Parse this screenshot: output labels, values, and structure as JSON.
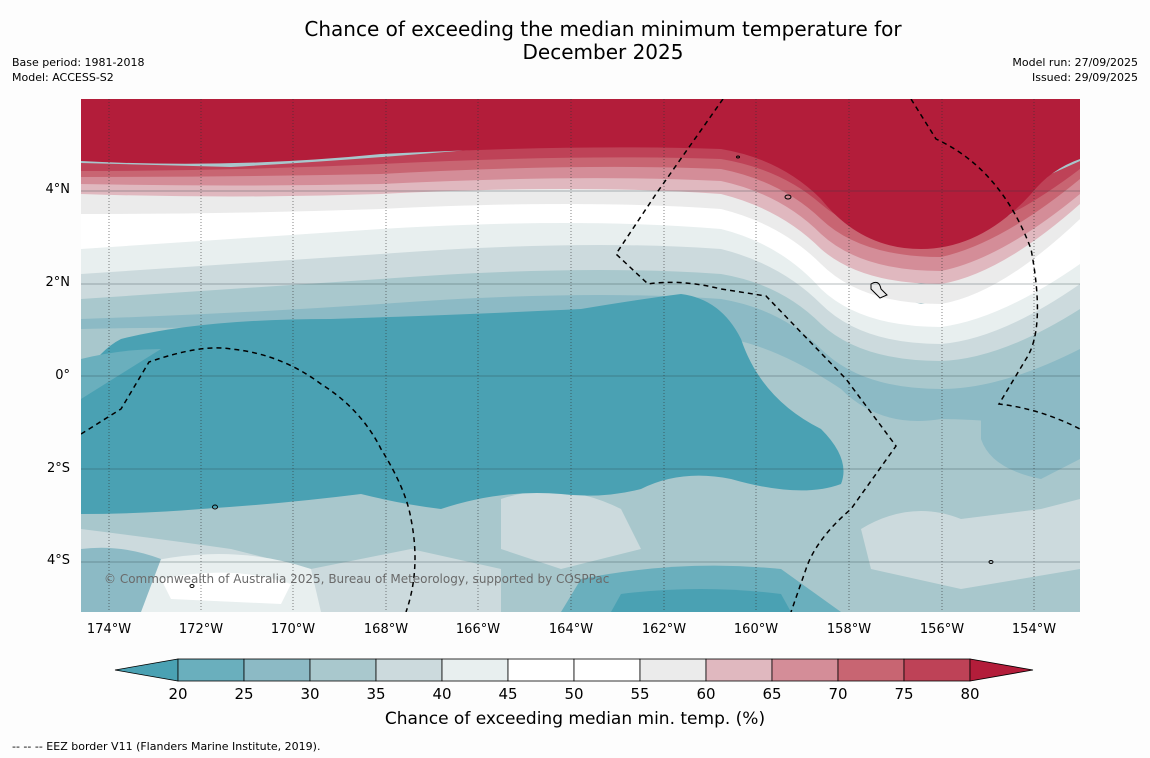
{
  "title_line1": "Chance of exceeding the median minimum temperature for",
  "title_line2": "December 2025",
  "base_period": "Base period: 1981-2018",
  "model": "Model: ACCESS-S2",
  "model_run": "Model run: 27/09/2025",
  "issued": "Issued: 29/09/2025",
  "lat_labels": [
    "4°N",
    "2°N",
    "0°",
    "2°S",
    "4°S"
  ],
  "lon_labels": [
    "174°W",
    "172°W",
    "170°W",
    "168°W",
    "166°W",
    "164°W",
    "162°W",
    "160°W",
    "158°W",
    "156°W",
    "154°W"
  ],
  "copyright": "© Commonwealth of Australia 2025, Bureau of Meteorology, supported by COSPPac",
  "colorbar": {
    "ticks": [
      "20",
      "25",
      "30",
      "35",
      "40",
      "45",
      "50",
      "55",
      "60",
      "65",
      "70",
      "75",
      "80"
    ],
    "label": "Chance of exceeding median min. temp. (%)",
    "colors": [
      "#4aa1b3",
      "#6aafbd",
      "#8cbac5",
      "#a9c8cd",
      "#ccdadd",
      "#e8efef",
      "#ffffff",
      "#ffffff",
      "#ebebeb",
      "#e0b8bf",
      "#d48d98",
      "#c86572",
      "#be4257",
      "#b31d3a"
    ]
  },
  "eez_note": "--  --  -- EEZ border V11 (Flanders Marine Institute, 2019)."
}
